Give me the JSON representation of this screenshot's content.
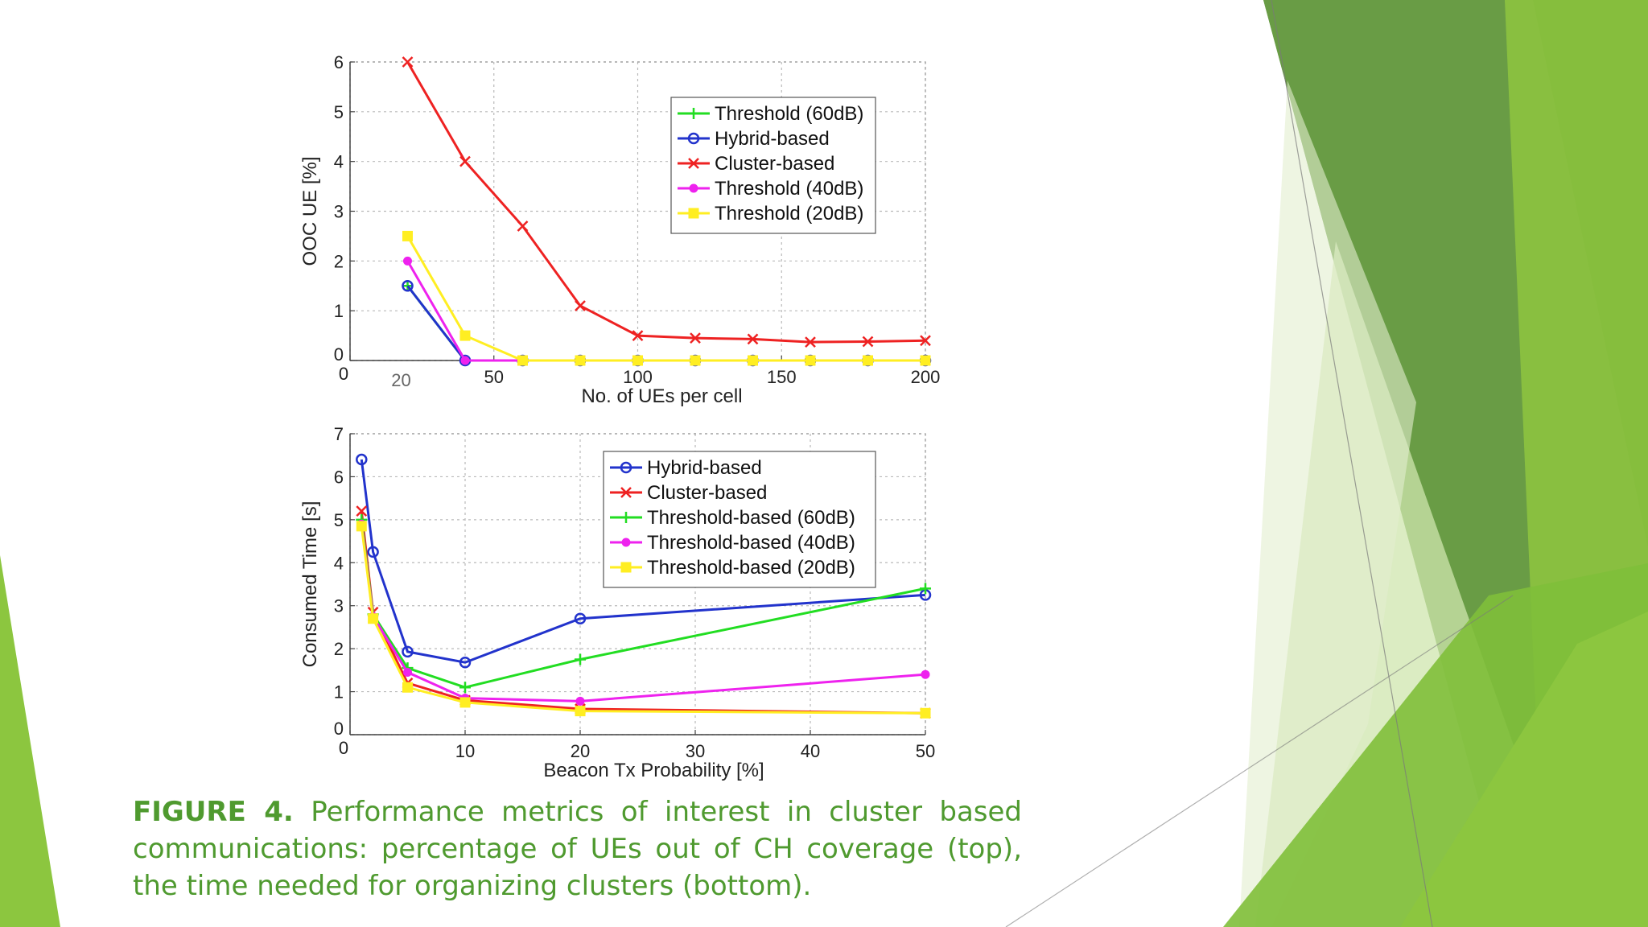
{
  "caption": {
    "label": "FIGURE 4.",
    "text": "Performance metrics of interest in cluster based communications: percentage of UEs out of CH coverage (top), the time needed for organizing clusters (bottom)."
  },
  "theme_colors": {
    "caption": "#4f9a2f",
    "green_dark": "#4a8b2c",
    "green_light": "#8cc63f"
  },
  "chart_data": [
    {
      "type": "line",
      "xlabel": "No. of UEs per cell",
      "ylabel": "OOC UE [%]",
      "xlim": [
        0,
        200
      ],
      "ylim": [
        0,
        6
      ],
      "xticks": [
        0,
        50,
        100,
        150,
        200
      ],
      "xtick_labels": [
        "0",
        "50",
        "100",
        "150",
        "200"
      ],
      "extra_xtick_label": "20",
      "yticks": [
        0,
        1,
        2,
        3,
        4,
        5,
        6
      ],
      "grid": true,
      "legend_position": "top-right",
      "series": [
        {
          "name": "Threshold (60dB)",
          "color": "#22dd22",
          "marker": "plus",
          "x": [
            20,
            40,
            60,
            80,
            100,
            120,
            140,
            160,
            180,
            200
          ],
          "y": [
            1.5,
            0,
            0,
            0,
            0,
            0,
            0,
            0,
            0,
            0
          ]
        },
        {
          "name": "Hybrid-based",
          "color": "#2233cc",
          "marker": "circle",
          "x": [
            20,
            40,
            60,
            80,
            100,
            120,
            140,
            160,
            180,
            200
          ],
          "y": [
            1.5,
            0,
            0,
            0,
            0,
            0,
            0,
            0,
            0,
            0
          ]
        },
        {
          "name": "Cluster-based",
          "color": "#ee2222",
          "marker": "cross",
          "x": [
            20,
            40,
            60,
            80,
            100,
            120,
            140,
            160,
            180,
            200
          ],
          "y": [
            6.0,
            4.0,
            2.7,
            1.1,
            0.5,
            0.45,
            0.43,
            0.37,
            0.38,
            0.4
          ]
        },
        {
          "name": "Threshold (40dB)",
          "color": "#ee22ee",
          "marker": "star",
          "x": [
            20,
            40,
            60,
            80,
            100,
            120,
            140,
            160,
            180,
            200
          ],
          "y": [
            2.0,
            0,
            0,
            0,
            0,
            0,
            0,
            0,
            0,
            0
          ]
        },
        {
          "name": "Threshold (20dB)",
          "color": "#ffee22",
          "marker": "square",
          "x": [
            20,
            40,
            60,
            80,
            100,
            120,
            140,
            160,
            180,
            200
          ],
          "y": [
            2.5,
            0.5,
            0,
            0,
            0,
            0,
            0,
            0,
            0,
            0
          ]
        }
      ]
    },
    {
      "type": "line",
      "xlabel": "Beacon Tx Probability [%]",
      "ylabel": "Consumed Time [s]",
      "xlim": [
        0,
        50
      ],
      "ylim": [
        0,
        7
      ],
      "xticks": [
        0,
        10,
        20,
        30,
        40,
        50
      ],
      "xtick_labels": [
        "0",
        "10",
        "20",
        "30",
        "40",
        "50"
      ],
      "yticks": [
        0,
        1,
        2,
        3,
        4,
        5,
        6,
        7
      ],
      "grid": true,
      "legend_position": "top-right",
      "series": [
        {
          "name": "Hybrid-based",
          "color": "#2233cc",
          "marker": "circle",
          "x": [
            1,
            2,
            5,
            10,
            20,
            50
          ],
          "y": [
            6.4,
            4.25,
            1.93,
            1.68,
            2.7,
            3.25
          ]
        },
        {
          "name": "Cluster-based",
          "color": "#ee2222",
          "marker": "cross",
          "x": [
            1,
            2,
            5,
            10,
            20,
            50
          ],
          "y": [
            5.2,
            2.85,
            1.2,
            0.8,
            0.6,
            0.5
          ]
        },
        {
          "name": "Threshold-based (60dB)",
          "color": "#22dd22",
          "marker": "plus",
          "x": [
            1,
            2,
            5,
            10,
            20,
            50
          ],
          "y": [
            5.0,
            2.8,
            1.55,
            1.1,
            1.75,
            3.4
          ]
        },
        {
          "name": "Threshold-based (40dB)",
          "color": "#ee22ee",
          "marker": "star",
          "x": [
            1,
            2,
            5,
            10,
            20,
            50
          ],
          "y": [
            4.9,
            2.75,
            1.45,
            0.85,
            0.78,
            1.4
          ]
        },
        {
          "name": "Threshold-based (20dB)",
          "color": "#ffee22",
          "marker": "square",
          "x": [
            1,
            2,
            5,
            10,
            20,
            50
          ],
          "y": [
            4.85,
            2.7,
            1.1,
            0.75,
            0.55,
            0.5
          ]
        }
      ]
    }
  ]
}
